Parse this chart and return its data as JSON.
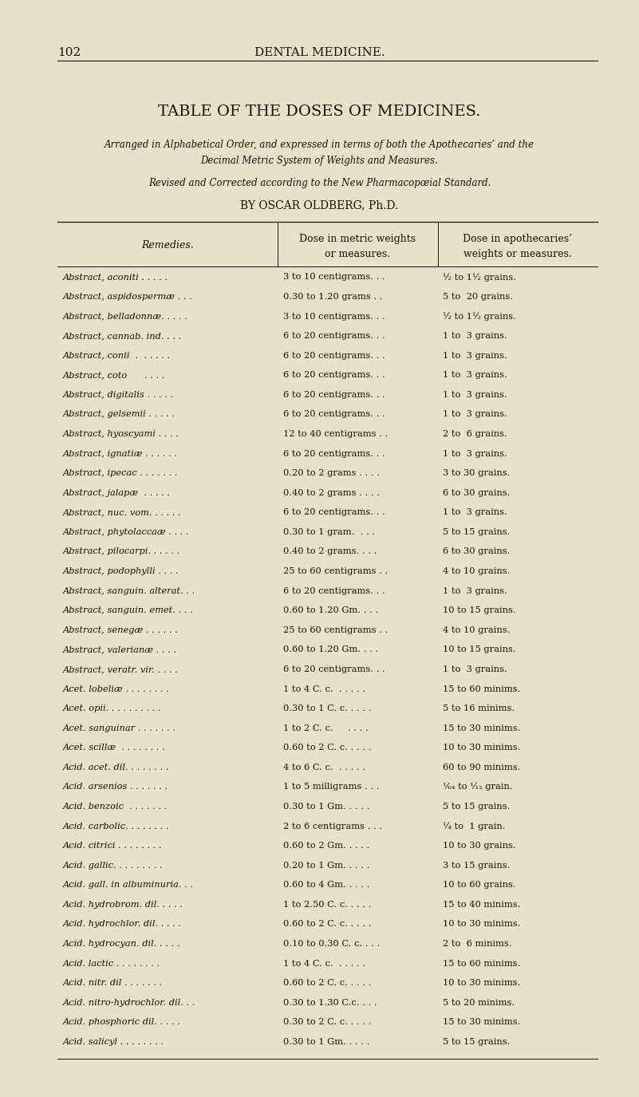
{
  "bg_color": "#e8e0c8",
  "text_color": "#1a1008",
  "page_number": "102",
  "page_header": "DENTAL MEDICINE.",
  "title": "TABLE OF THE DOSES OF MEDICINES.",
  "subtitle1": "Arranged in Alphabetical Order, and expressed in terms of both the Apothecaries’ and the",
  "subtitle2": "Decimal Metric System of Weights and Measures.",
  "subtitle3": "Revised and Corrected according to the New Pharmacopœial Standard.",
  "author": "BY OSCAR OLDBERG, Ph.D.",
  "col1_header": "Remedies.",
  "col2_header_line1": "Dose in metric weights",
  "col2_header_line2": "or measures.",
  "col3_header_line1": "Dose in apothecaries’",
  "col3_header_line2": "weights or measures.",
  "rows": [
    [
      "Abstract, aconiti . . . . .",
      "3 to 10 centigrams. . .",
      "½ to 1½ grains."
    ],
    [
      "Abstract, aspidospermæ . . .",
      "0.30 to 1.20 grams . .",
      "5 to  20 grains."
    ],
    [
      "Abstract, belladonnæ. . . . .",
      "3 to 10 centigrams. . .",
      "½ to 1½ grains."
    ],
    [
      "Abstract, cannab. ind. . . .",
      "6 to 20 centigrams. . .",
      "1 to  3 grains."
    ],
    [
      "Abstract, conii  .  . . . . .",
      "6 to 20 centigrams. . .",
      "1 to  3 grains."
    ],
    [
      "Abstract, coto      . . . .",
      "6 to 20 centigrams. . .",
      "1 to  3 grains."
    ],
    [
      "Abstract, digitalis . . . . .",
      "6 to 20 centigrams. . .",
      "1 to  3 grains."
    ],
    [
      "Abstract, gelsemii . . . . .",
      "6 to 20 centigrams. . .",
      "1 to  3 grains."
    ],
    [
      "Abstract, hyoscyami . . . .",
      "12 to 40 centigrams . .",
      "2 to  6 grains."
    ],
    [
      "Abstract, ignatiæ . . . . . .",
      "6 to 20 centigrams. . .",
      "1 to  3 grains."
    ],
    [
      "Abstract, ipecac . . . . . . .",
      "0.20 to 2 grams . . . .",
      "3 to 30 grains."
    ],
    [
      "Abstract, jalapæ  . . . . .",
      "0.40 to 2 grams . . . .",
      "6 to 30 grains."
    ],
    [
      "Abstract, nuc. vom. . . . . .",
      "6 to 20 centigrams. . .",
      "1 to  3 grains."
    ],
    [
      "Abstract, phytolaccaæ . . . .",
      "0.30 to 1 gram.  . . .",
      "5 to 15 grains."
    ],
    [
      "Abstract, pilocarpi. . . . . .",
      "0.40 to 2 grams. . . .",
      "6 to 30 grains."
    ],
    [
      "Abstract, podophylli . . . .",
      "25 to 60 centigrams . .",
      "4 to 10 grains."
    ],
    [
      "Abstract, sanguin. alterat. . .",
      "6 to 20 centigrams. . .",
      "1 to  3 grains."
    ],
    [
      "Abstract, sanguin. emet. . . .",
      "0.60 to 1.20 Gm. . . .",
      "10 to 15 grains."
    ],
    [
      "Abstract, senegæ . . . . . .",
      "25 to 60 centigrams . .",
      "4 to 10 grains."
    ],
    [
      "Abstract, valerianæ . . . .",
      "0.60 to 1.20 Gm. . . .",
      "10 to 15 grains."
    ],
    [
      "Abstract, veratr. vir. . . . .",
      "6 to 20 centigrams. . .",
      "1 to  3 grains."
    ],
    [
      "Acet. lobeliæ . . . . . . . .",
      "1 to 4 C. c.  . . . . .",
      "15 to 60 minims."
    ],
    [
      "Acet. opii. . . . . . . . . .",
      "0.30 to 1 C. c. . . . .",
      "5 to 16 minims."
    ],
    [
      "Acet. sanguinar . . . . . . .",
      "1 to 2 C. c.     . . . .",
      "15 to 30 minims."
    ],
    [
      "Acet. scillæ  . . . . . . . .",
      "0.60 to 2 C. c. . . . .",
      "10 to 30 minims."
    ],
    [
      "Acid. acet. dil. . . . . . . .",
      "4 to 6 C. c.  . . . . .",
      "60 to 90 minims."
    ],
    [
      "Acid. arsenios . . . . . . .",
      "1 to 5 milligrams . . .",
      "¹⁄₆₄ to ¹⁄₁₂ grain."
    ],
    [
      "Acid. benzoic  . . . . . . .",
      "0.30 to 1 Gm. . . . .",
      "5 to 15 grains."
    ],
    [
      "Acid. carbolic. . . . . . . .",
      "2 to 6 centigrams . . .",
      "¼ to  1 grain."
    ],
    [
      "Acid. citrici . . . . . . . .",
      "0.60 to 2 Gm. . . . .",
      "10 to 30 grains."
    ],
    [
      "Acid. gallic. . . . . . . . .",
      "0.20 to 1 Gm. . . . .",
      "3 to 15 grains."
    ],
    [
      "Acid. gall. in albuminuria. . .",
      "0.60 to 4 Gm. . . . .",
      "10 to 60 grains."
    ],
    [
      "Acid. hydrobrom. dil. . . . .",
      "1 to 2.50 C. c. . . . .",
      "15 to 40 minims."
    ],
    [
      "Acid. hydrochlor. dil. . . . .",
      "0.60 to 2 C. c. . . . .",
      "10 to 30 minims."
    ],
    [
      "Acid. hydrocyan. dil. . . . .",
      "0.10 to 0.30 C. c. . . .",
      "2 to  6 minims."
    ],
    [
      "Acid. lactic . . . . . . . .",
      "1 to 4 C. c.  . . . . .",
      "15 to 60 minims."
    ],
    [
      "Acid. nitr. dil . . . . . . .",
      "0.60 to 2 C. c. . . . .",
      "10 to 30 minims."
    ],
    [
      "Acid. nitro-hydrochlor. dil. . .",
      "0.30 to 1.30 C.c. . . .",
      "5 to 20 minims."
    ],
    [
      "Acid. phosphoric dil. . . . .",
      "0.30 to 2 C. c. . . . .",
      "15 to 30 minims."
    ],
    [
      "Acid. salicyl . . . . . . . .",
      "0.30 to 1 Gm. . . . .",
      "5 to 15 grains."
    ]
  ]
}
